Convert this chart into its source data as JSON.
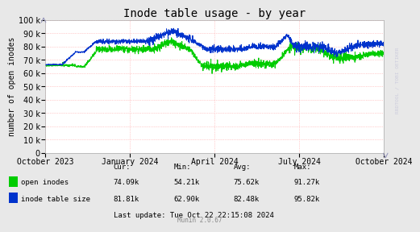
{
  "title": "Inode table usage - by year",
  "ylabel": "number of open inodes",
  "ylim": [
    0,
    100000
  ],
  "yticks": [
    0,
    10000,
    20000,
    30000,
    40000,
    50000,
    60000,
    70000,
    80000,
    90000,
    100000
  ],
  "fig_bg_color": "#e8e8e8",
  "plot_bg_color": "#ffffff",
  "grid_color": "#ff9999",
  "title_fontsize": 10,
  "axis_label_fontsize": 7,
  "tick_fontsize": 7,
  "legend_entries": [
    "open inodes",
    "inode table size"
  ],
  "stats_header": [
    "Cur:",
    "Min:",
    "Avg:",
    "Max:"
  ],
  "stats_open_inodes": [
    "74.09k",
    "54.21k",
    "75.62k",
    "91.27k"
  ],
  "stats_inode_table": [
    "81.81k",
    "62.90k",
    "82.48k",
    "95.82k"
  ],
  "last_update": "Last update: Tue Oct 22 22:15:08 2024",
  "munin_version": "Munin 2.0.67",
  "watermark": "RRDTOOL / TOBI OETIKER",
  "x_tick_labels": [
    "October 2023",
    "January 2024",
    "April 2024",
    "July 2024",
    "October 2024"
  ],
  "x_tick_positions": [
    0.0,
    0.25,
    0.5,
    0.75,
    1.0
  ],
  "open_inodes_color": "#00cc00",
  "inode_table_color": "#0033cc",
  "line_width": 0.7
}
